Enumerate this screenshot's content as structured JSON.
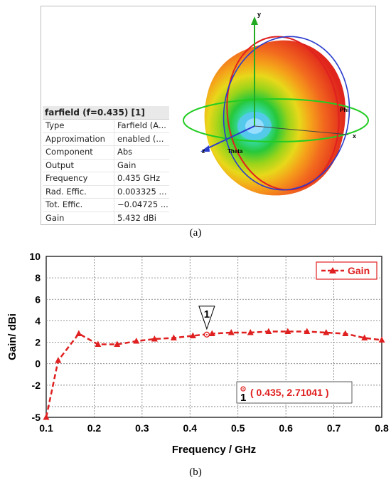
{
  "captions": {
    "a": "(a)",
    "b": "(b)"
  },
  "farfield": {
    "title": "farfield (f=0.435) [1]",
    "axes": {
      "x": "x",
      "y": "y",
      "z": "z",
      "phi": "Phi",
      "theta": "Theta"
    },
    "properties": [
      {
        "key": "Type",
        "value": "Farfield (A..."
      },
      {
        "key": "Approximation",
        "value": "enabled (..."
      },
      {
        "key": "Component",
        "value": "Abs"
      },
      {
        "key": "Output",
        "value": "Gain"
      },
      {
        "key": "Frequency",
        "value": "0.435 GHz"
      },
      {
        "key": "Rad. Effic.",
        "value": "0.003325 ..."
      },
      {
        "key": "Tot. Effic.",
        "value": "−0.04725 ..."
      },
      {
        "key": "Gain",
        "value": "5.432 dBi"
      }
    ]
  },
  "chart_data": {
    "type": "line",
    "title": "",
    "xlabel": "Frequency / GHz",
    "ylabel": "Gain/ dBi",
    "xlim": [
      0.1,
      0.8
    ],
    "ylim": [
      -5,
      10
    ],
    "xticks": [
      "0.1",
      "0.2",
      "0.3",
      "0.4",
      "0.5",
      "0.6",
      "0.7",
      "0.8"
    ],
    "yticks": [
      "-5",
      "-2",
      "0",
      "2",
      "4",
      "6",
      "8",
      "10"
    ],
    "grid": true,
    "legend_position": "top-right",
    "series": [
      {
        "name": "Gain",
        "color": "#e02020",
        "line_style": "dashed",
        "marker": "triangle",
        "x": [
          0.1,
          0.125,
          0.168,
          0.208,
          0.248,
          0.288,
          0.326,
          0.366,
          0.406,
          0.446,
          0.486,
          0.526,
          0.564,
          0.604,
          0.644,
          0.684,
          0.724,
          0.764,
          0.8
        ],
        "y": [
          -5.0,
          0.3,
          2.8,
          1.8,
          1.8,
          2.1,
          2.3,
          2.4,
          2.6,
          2.8,
          2.9,
          2.9,
          3.0,
          3.0,
          3.0,
          2.9,
          2.8,
          2.4,
          2.2
        ]
      }
    ],
    "marker": {
      "label": "1",
      "x": 0.435,
      "y": 2.71041,
      "readout": "( 0.435, 2.71041 )"
    }
  }
}
